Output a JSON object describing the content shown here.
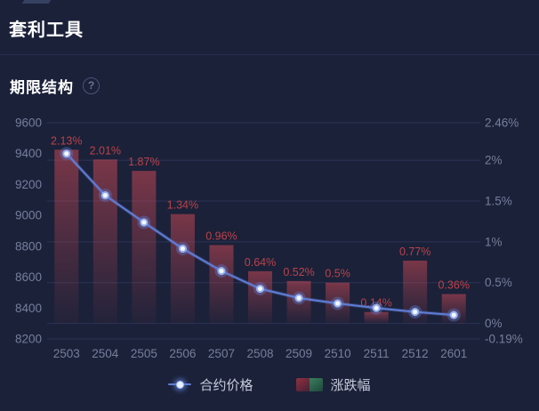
{
  "page": {
    "title": "套利工具"
  },
  "section": {
    "title": "期限结构",
    "help_glyph": "?"
  },
  "colors": {
    "background": "#1b2139",
    "divider": "#272e4d",
    "title_text": "#ffffff",
    "axis_text": "#767e9a",
    "grid_line": "#2c3354",
    "bar_color": "#d04a56",
    "bar_top_opacity": 0.52,
    "bar_bottom_opacity": 0.04,
    "bar_label": "#bc4248",
    "line": "#5f7dd6",
    "dot_halo": "#5d7fd8",
    "dot_mid": "#9db9f5",
    "dot_core": "#f4f8ff",
    "legend_text": "#c6cbda",
    "legend_red": "#8a2f3f",
    "legend_green": "#2e7055"
  },
  "chart_data": {
    "type": "bar+line dual-axis",
    "title": "期限结构",
    "categories": [
      "2503",
      "2504",
      "2505",
      "2506",
      "2507",
      "2508",
      "2509",
      "2510",
      "2511",
      "2512",
      "2601"
    ],
    "series": [
      {
        "name": "合约价格",
        "type": "line",
        "axis": "left",
        "values": [
          9400,
          9130,
          8955,
          8785,
          8640,
          8525,
          8465,
          8430,
          8400,
          8375,
          8355
        ]
      },
      {
        "name": "涨跌幅",
        "type": "bar",
        "axis": "right",
        "values": [
          2.13,
          2.01,
          1.87,
          1.34,
          0.96,
          0.64,
          0.52,
          0.5,
          0.14,
          0.77,
          0.36
        ],
        "labels": [
          "2.13%",
          "2.01%",
          "1.87%",
          "1.34%",
          "0.96%",
          "0.64%",
          "0.52%",
          "0.5%",
          "0.14%",
          "0.77%",
          "0.36%"
        ]
      }
    ],
    "left_axis": {
      "min": 8200,
      "max": 9600,
      "ticks": [
        "9600",
        "9400",
        "9200",
        "9000",
        "8800",
        "8600",
        "8400",
        "8200"
      ]
    },
    "right_axis": {
      "min": -0.19,
      "max": 2.46,
      "ticks": [
        {
          "label": "2.46%",
          "value": 2.46
        },
        {
          "label": "2%",
          "value": 2
        },
        {
          "label": "1.5%",
          "value": 1.5
        },
        {
          "label": "1%",
          "value": 1
        },
        {
          "label": "0.5%",
          "value": 0.5
        },
        {
          "label": "0%",
          "value": 0
        },
        {
          "label": "-0.19%",
          "value": -0.19
        }
      ]
    },
    "grid": true,
    "legend_position": "bottom"
  }
}
